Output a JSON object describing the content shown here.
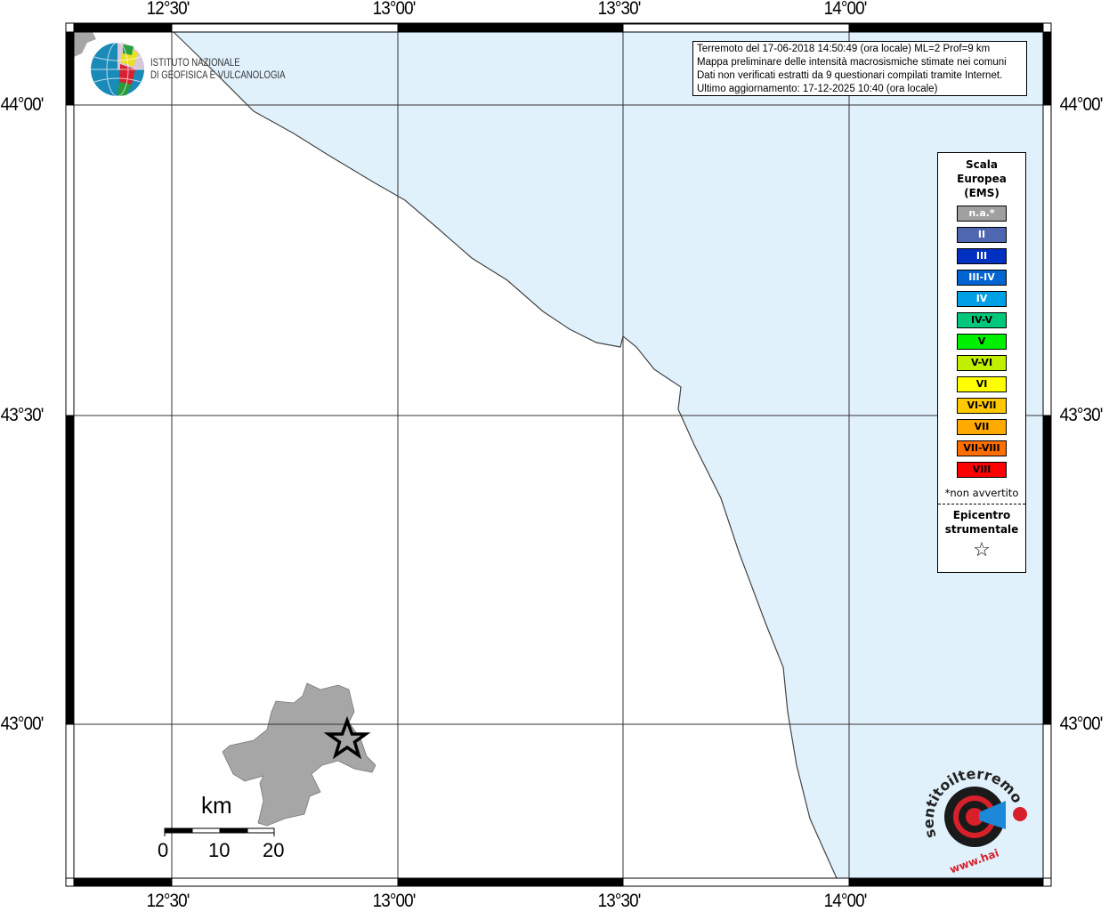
{
  "map": {
    "lon_ticks": [
      "12°30'",
      "13°00'",
      "13°30'",
      "14°00'"
    ],
    "lat_ticks": [
      "44°00'",
      "43°30'",
      "43°00'"
    ],
    "sea_color": "#e1f1fc",
    "land_color": "#ffffff",
    "commune_color": "#a6a6a6"
  },
  "info": {
    "line1": "Terremoto del 17-06-2018 14:50:49 (ora locale) ML=2 Prof=9 km",
    "line2": "Mappa preliminare delle intensità macrosismiche stimate nei comuni",
    "line3": "Dati non verificati estratti da 9 questionari compilati tramite Internet.",
    "line4": "Ultimo aggiornamento: 17-12-2025 10:40 (ora locale)"
  },
  "legend": {
    "title": [
      "Scala",
      "Europea",
      "(EMS)"
    ],
    "items": [
      {
        "label": "n.a.*",
        "color": "#a0a0a0",
        "text_color": "#ffffff"
      },
      {
        "label": "II",
        "color": "#4f67b0",
        "text_color": "#ffffff"
      },
      {
        "label": "III",
        "color": "#0030c0",
        "text_color": "#ffffff"
      },
      {
        "label": "III-IV",
        "color": "#0064d2",
        "text_color": "#ffffff"
      },
      {
        "label": "IV",
        "color": "#00a0e6",
        "text_color": "#ffffff"
      },
      {
        "label": "IV-V",
        "color": "#00c878",
        "text_color": "#000000"
      },
      {
        "label": "V",
        "color": "#00f000",
        "text_color": "#000000"
      },
      {
        "label": "V-VI",
        "color": "#c0f000",
        "text_color": "#000000"
      },
      {
        "label": "VI",
        "color": "#ffff00",
        "text_color": "#000000"
      },
      {
        "label": "VI-VII",
        "color": "#ffc800",
        "text_color": "#000000"
      },
      {
        "label": "VII",
        "color": "#ffaa00",
        "text_color": "#000000"
      },
      {
        "label": "VII-VIII",
        "color": "#ff6e00",
        "text_color": "#000000"
      },
      {
        "label": "VIII",
        "color": "#ff0000",
        "text_color": "#000000"
      }
    ],
    "note": "*non avvertito",
    "epicentre": [
      "Epicentro",
      "strumentale"
    ],
    "star": "☆"
  },
  "scale_bar": {
    "unit": "km",
    "labels": [
      "0",
      "10",
      "20"
    ]
  },
  "logos": {
    "ingv": [
      "ISTITUTO NAZIONALE",
      "DI GEOFISICA E VULCANOLOGIA"
    ],
    "hsit": "www.haisentitoilterremoto.it"
  },
  "epicentre_icon": "star-icon"
}
